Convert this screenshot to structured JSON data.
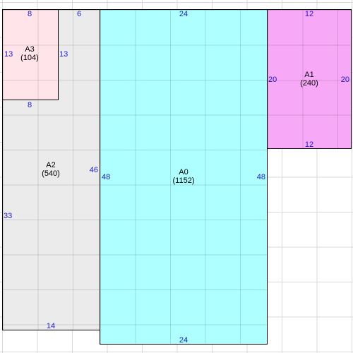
{
  "colors": {
    "A0": "#aeffff",
    "A1": "#f7a8f7",
    "A2": "#ebebeb",
    "A3": "#ffe4ea",
    "dimension_text": "#1a1ad6",
    "grid": "#d9d9d9"
  },
  "rects": {
    "A0": {
      "name": "A0",
      "area": "(1152)",
      "top": "24",
      "bottom": "24",
      "left": "48",
      "right": "48"
    },
    "A1": {
      "name": "A1",
      "area": "(240)",
      "top": "12",
      "bottom": "12",
      "left": "20",
      "right": "20"
    },
    "A2": {
      "name": "A2",
      "area": "(540)",
      "bottom": "14",
      "left": "33",
      "right": "46"
    },
    "A3": {
      "name": "A3",
      "area": "(104)",
      "top": "8",
      "bottom": "8",
      "left": "13",
      "right": "13"
    },
    "strip": {
      "top": "6"
    }
  }
}
